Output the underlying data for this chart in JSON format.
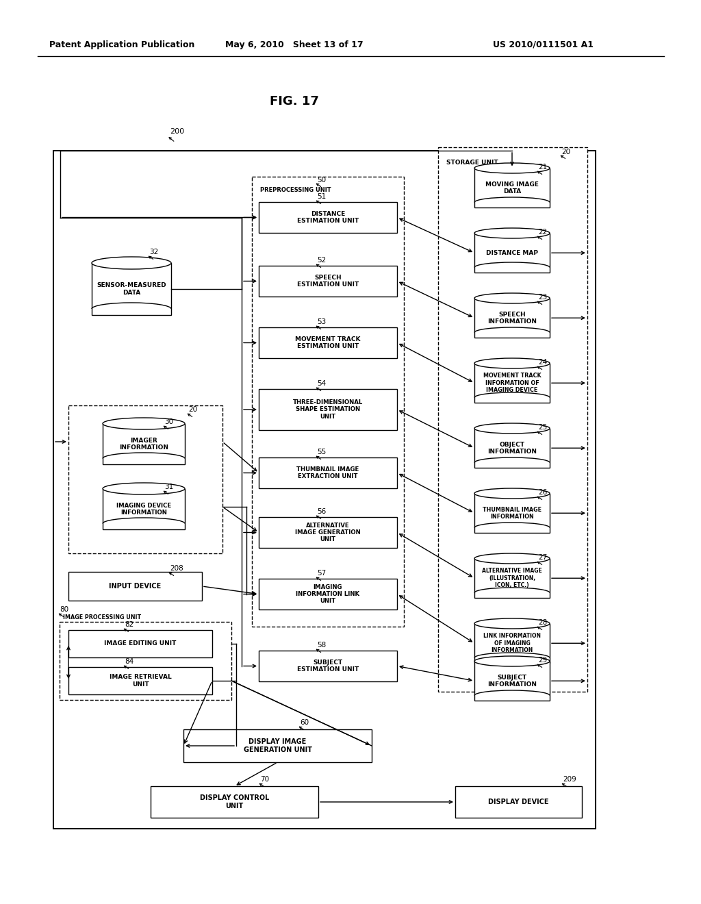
{
  "header_left": "Patent Application Publication",
  "header_mid": "May 6, 2010   Sheet 13 of 17",
  "header_right": "US 2010/0111501 A1",
  "fig_title": "FIG. 17",
  "bg_color": "#ffffff",
  "text_color": "#000000"
}
